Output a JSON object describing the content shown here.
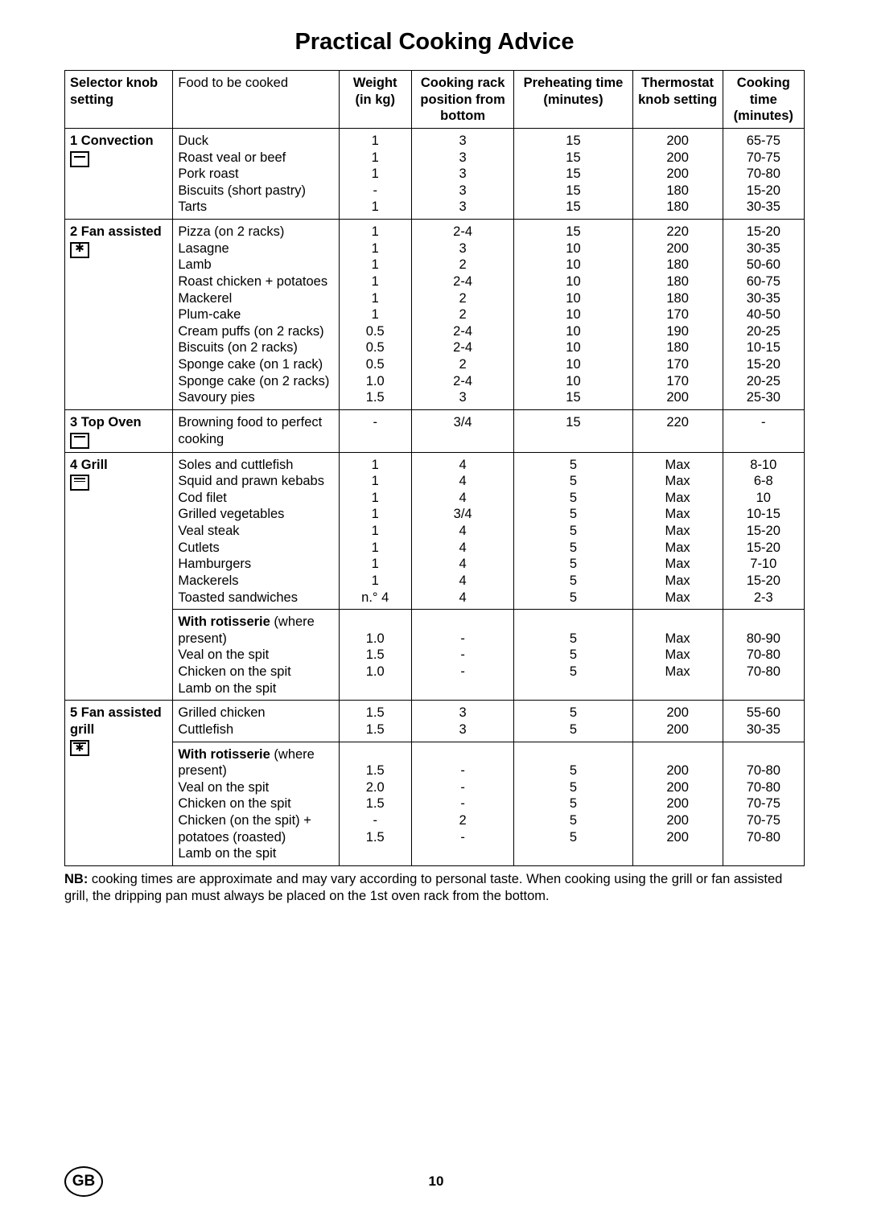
{
  "title": "Practical Cooking Advice",
  "columns": {
    "selector": "Selector knob setting",
    "food": "Food to be cooked",
    "weight": "Weight (in kg)",
    "rack": "Cooking rack position from bottom",
    "preheat": "Preheating time (minutes)",
    "thermostat": "Thermostat knob setting",
    "time": "Cooking time (minutes)"
  },
  "sections": [
    {
      "selector": "1 Convection",
      "icon": "icon-conv",
      "rows": [
        {
          "food": "Duck",
          "w": "1",
          "rack": "3",
          "pre": "15",
          "th": "200",
          "t": "65-75"
        },
        {
          "food": "Roast veal or beef",
          "w": "1",
          "rack": "3",
          "pre": "15",
          "th": "200",
          "t": "70-75"
        },
        {
          "food": "Pork roast",
          "w": "1",
          "rack": "3",
          "pre": "15",
          "th": "200",
          "t": "70-80"
        },
        {
          "food": "Biscuits (short pastry)",
          "w": "-",
          "rack": "3",
          "pre": "15",
          "th": "180",
          "t": "15-20"
        },
        {
          "food": "Tarts",
          "w": "1",
          "rack": "3",
          "pre": "15",
          "th": "180",
          "t": "30-35"
        }
      ]
    },
    {
      "selector": "2 Fan assisted",
      "icon": "icon-fan",
      "rows": [
        {
          "food": "Pizza (on 2 racks)",
          "w": "1",
          "rack": "2-4",
          "pre": "15",
          "th": "220",
          "t": "15-20"
        },
        {
          "food": "Lasagne",
          "w": "1",
          "rack": "3",
          "pre": "10",
          "th": "200",
          "t": "30-35"
        },
        {
          "food": "Lamb",
          "w": "1",
          "rack": "2",
          "pre": "10",
          "th": "180",
          "t": "50-60"
        },
        {
          "food": "Roast chicken + potatoes",
          "w": "1",
          "rack": "2-4",
          "pre": "10",
          "th": "180",
          "t": "60-75"
        },
        {
          "food": "Mackerel",
          "w": "1",
          "rack": "2",
          "pre": "10",
          "th": "180",
          "t": "30-35"
        },
        {
          "food": "Plum-cake",
          "w": "1",
          "rack": "2",
          "pre": "10",
          "th": "170",
          "t": "40-50"
        },
        {
          "food": "Cream puffs (on 2 racks)",
          "w": "0.5",
          "rack": "2-4",
          "pre": "10",
          "th": "190",
          "t": "20-25"
        },
        {
          "food": "Biscuits (on 2 racks)",
          "w": "0.5",
          "rack": "2-4",
          "pre": "10",
          "th": "180",
          "t": "10-15"
        },
        {
          "food": "Sponge cake (on 1 rack)",
          "w": "0.5",
          "rack": "2",
          "pre": "10",
          "th": "170",
          "t": "15-20"
        },
        {
          "food": "Sponge cake (on 2 racks)",
          "w": "1.0",
          "rack": "2-4",
          "pre": "10",
          "th": "170",
          "t": "20-25"
        },
        {
          "food": "Savoury pies",
          "w": "1.5",
          "rack": "3",
          "pre": "15",
          "th": "200",
          "t": "25-30"
        }
      ]
    },
    {
      "selector": "3 Top Oven",
      "icon": "icon-top",
      "rows": [
        {
          "food": "Browning food to perfect cooking",
          "w": "-",
          "rack": "3/4",
          "pre": "15",
          "th": "220",
          "t": "-"
        }
      ]
    },
    {
      "selector": "4 Grill",
      "icon": "icon-grill",
      "rows": [
        {
          "food": "Soles and cuttlefish",
          "w": "1",
          "rack": "4",
          "pre": "5",
          "th": "Max",
          "t": "8-10"
        },
        {
          "food": "Squid and prawn kebabs",
          "w": "1",
          "rack": "4",
          "pre": "5",
          "th": "Max",
          "t": "6-8"
        },
        {
          "food": "Cod filet",
          "w": "1",
          "rack": "4",
          "pre": "5",
          "th": "Max",
          "t": "10"
        },
        {
          "food": "Grilled vegetables",
          "w": "1",
          "rack": "3/4",
          "pre": "5",
          "th": "Max",
          "t": "10-15"
        },
        {
          "food": "Veal steak",
          "w": "1",
          "rack": "4",
          "pre": "5",
          "th": "Max",
          "t": "15-20"
        },
        {
          "food": "Cutlets",
          "w": "1",
          "rack": "4",
          "pre": "5",
          "th": "Max",
          "t": "15-20"
        },
        {
          "food": "Hamburgers",
          "w": "1",
          "rack": "4",
          "pre": "5",
          "th": "Max",
          "t": "7-10"
        },
        {
          "food": "Mackerels",
          "w": "1",
          "rack": "4",
          "pre": "5",
          "th": "Max",
          "t": "15-20"
        },
        {
          "food": "Toasted sandwiches",
          "w": "n.° 4",
          "rack": "4",
          "pre": "5",
          "th": "Max",
          "t": "2-3"
        }
      ],
      "sub_header_bold": "With rotisserie",
      "sub_header_rest": " (where present)",
      "sub_rows": [
        {
          "food": "Veal on the spit",
          "w": "1.0",
          "rack": "-",
          "pre": "5",
          "th": "Max",
          "t": "80-90"
        },
        {
          "food": "Chicken on the spit",
          "w": "1.5",
          "rack": "-",
          "pre": "5",
          "th": "Max",
          "t": "70-80"
        },
        {
          "food": "Lamb on the spit",
          "w": "1.0",
          "rack": "-",
          "pre": "5",
          "th": "Max",
          "t": "70-80"
        }
      ]
    },
    {
      "selector": "5 Fan assisted grill",
      "icon": "icon-fangrill",
      "rows": [
        {
          "food": "Grilled chicken",
          "w": "1.5",
          "rack": "3",
          "pre": "5",
          "th": "200",
          "t": "55-60"
        },
        {
          "food": "Cuttlefish",
          "w": "1.5",
          "rack": "3",
          "pre": "5",
          "th": "200",
          "t": "30-35"
        }
      ],
      "sub_header_bold": "With rotisserie",
      "sub_header_rest": " (where present)",
      "sub_rows": [
        {
          "food": "Veal on the spit",
          "w": "1.5",
          "rack": "-",
          "pre": "5",
          "th": "200",
          "t": "70-80"
        },
        {
          "food": "Chicken on the spit",
          "w": "2.0",
          "rack": "-",
          "pre": "5",
          "th": "200",
          "t": "70-80"
        },
        {
          "food": "Chicken (on the spit) + potatoes (roasted)",
          "w": "1.5\n-",
          "rack": "-\n2",
          "pre": "5\n5",
          "th": "200\n200",
          "t": "70-75\n70-75"
        },
        {
          "food": "Lamb on the spit",
          "w": "1.5",
          "rack": "-",
          "pre": "5",
          "th": "200",
          "t": "70-80"
        }
      ]
    }
  ],
  "nb_bold": "NB:",
  "nb_text": " cooking times are approximate and may vary according to personal taste.  When cooking using the grill or fan assisted grill, the dripping pan must always be placed on the 1st oven rack from the bottom.",
  "footer": {
    "country": "GB",
    "page": "10"
  }
}
